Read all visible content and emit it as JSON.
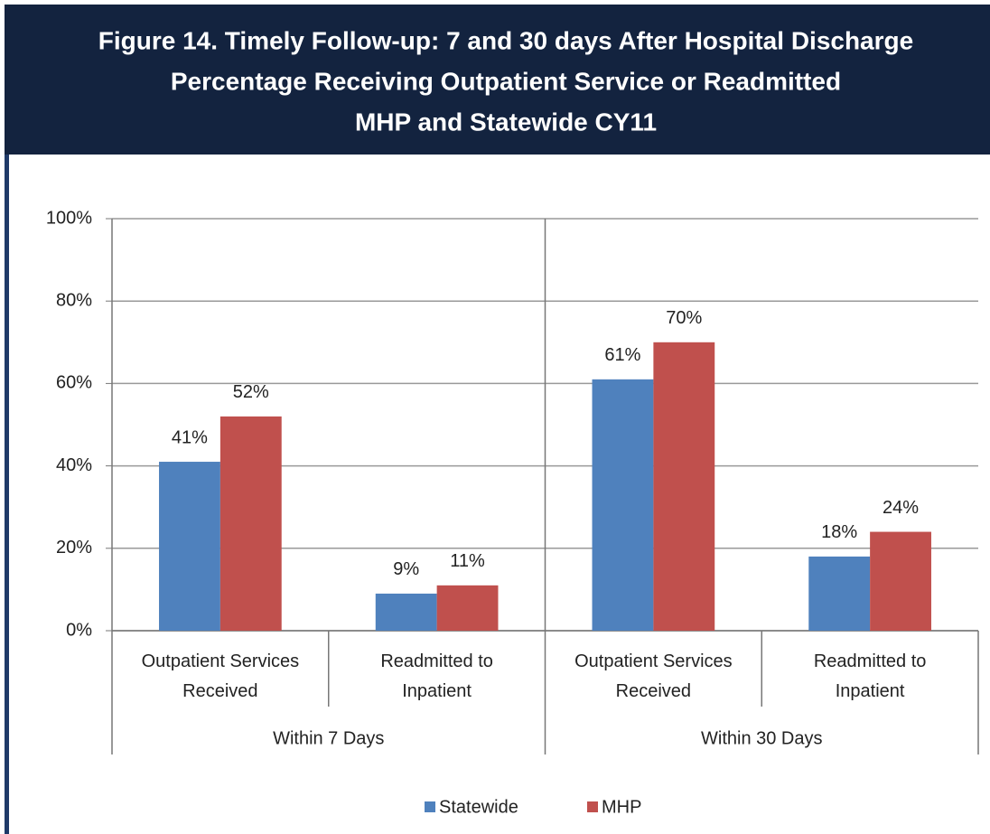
{
  "chart_data": {
    "type": "bar",
    "title": [
      "Figure 14. Timely Follow-up: 7 and 30 days After Hospital Discharge",
      "Percentage Receiving Outpatient Service or Readmitted",
      "MHP and Statewide CY11"
    ],
    "categories": [
      "Outpatient Services Received",
      "Readmitted to Inpatient",
      "Outpatient Services Received",
      "Readmitted to Inpatient"
    ],
    "groups": [
      "Within 7 Days",
      "Within 30 Days"
    ],
    "series": [
      {
        "name": "Statewide",
        "color": "#4f81bd",
        "values": [
          41,
          9,
          61,
          18
        ],
        "value_labels": [
          "41%",
          "9%",
          "61%",
          "18%"
        ]
      },
      {
        "name": "MHP",
        "color": "#c0504d",
        "values": [
          52,
          11,
          70,
          24
        ],
        "value_labels": [
          "52%",
          "11%",
          "70%",
          "24%"
        ]
      }
    ],
    "ylim": [
      0,
      100
    ],
    "yticks": [
      {
        "value": 0,
        "label": "0%"
      },
      {
        "value": 20,
        "label": "20%"
      },
      {
        "value": 40,
        "label": "40%"
      },
      {
        "value": 60,
        "label": "60%"
      },
      {
        "value": 80,
        "label": "80%"
      },
      {
        "value": 100,
        "label": "100%"
      }
    ],
    "grid": true,
    "legend": "bottom"
  }
}
